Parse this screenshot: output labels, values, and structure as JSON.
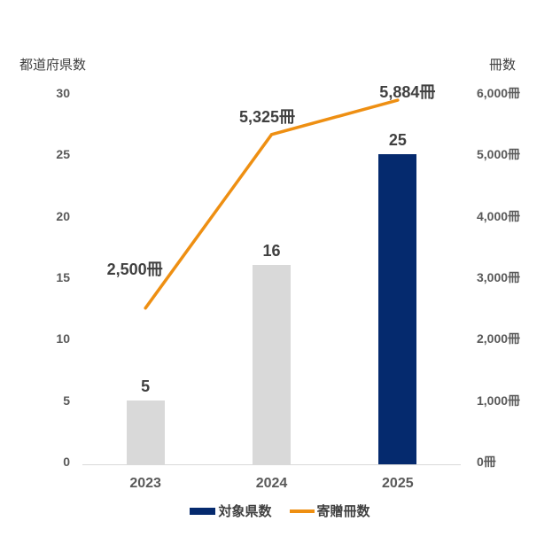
{
  "chart_data": {
    "type": "combo-bar-line",
    "title": "",
    "categories": [
      "2023",
      "2024",
      "2025"
    ],
    "series": [
      {
        "name": "対象県数",
        "type": "bar",
        "axis": "left",
        "values": [
          5,
          16,
          25
        ],
        "data_labels": [
          "5",
          "16",
          "25"
        ],
        "bar_colors": [
          "#d9d9d9",
          "#d9d9d9",
          "#052a6e"
        ]
      },
      {
        "name": "寄贈冊数",
        "type": "line",
        "axis": "right",
        "values": [
          2500,
          5325,
          5884
        ],
        "data_labels": [
          "2,500冊",
          "5,325冊",
          "5,884冊"
        ],
        "color": "#ee8f12"
      }
    ],
    "left_axis": {
      "title": "都道府県数",
      "min": 0,
      "max": 30,
      "step": 5,
      "tick_labels": [
        "0",
        "5",
        "10",
        "15",
        "20",
        "25",
        "30"
      ]
    },
    "right_axis": {
      "title": "冊数",
      "min": 0,
      "max": 6000,
      "step": 1000,
      "tick_labels": [
        "0冊",
        "1,000冊",
        "2,000冊",
        "3,000冊",
        "4,000冊",
        "5,000冊",
        "6,000冊"
      ]
    },
    "grid": false,
    "legend_position": "bottom",
    "legend": [
      {
        "label": "対象県数",
        "swatch": "rect",
        "color": "#052a6e"
      },
      {
        "label": "寄贈冊数",
        "swatch": "line",
        "color": "#ee8f12"
      }
    ]
  },
  "colors": {
    "background": "#ffffff",
    "bar_default": "#d9d9d9",
    "bar_highlight": "#052a6e",
    "line": "#ee8f12",
    "axis_line": "#d9d9d9",
    "tick_text": "#595959",
    "label_text": "#404040"
  }
}
